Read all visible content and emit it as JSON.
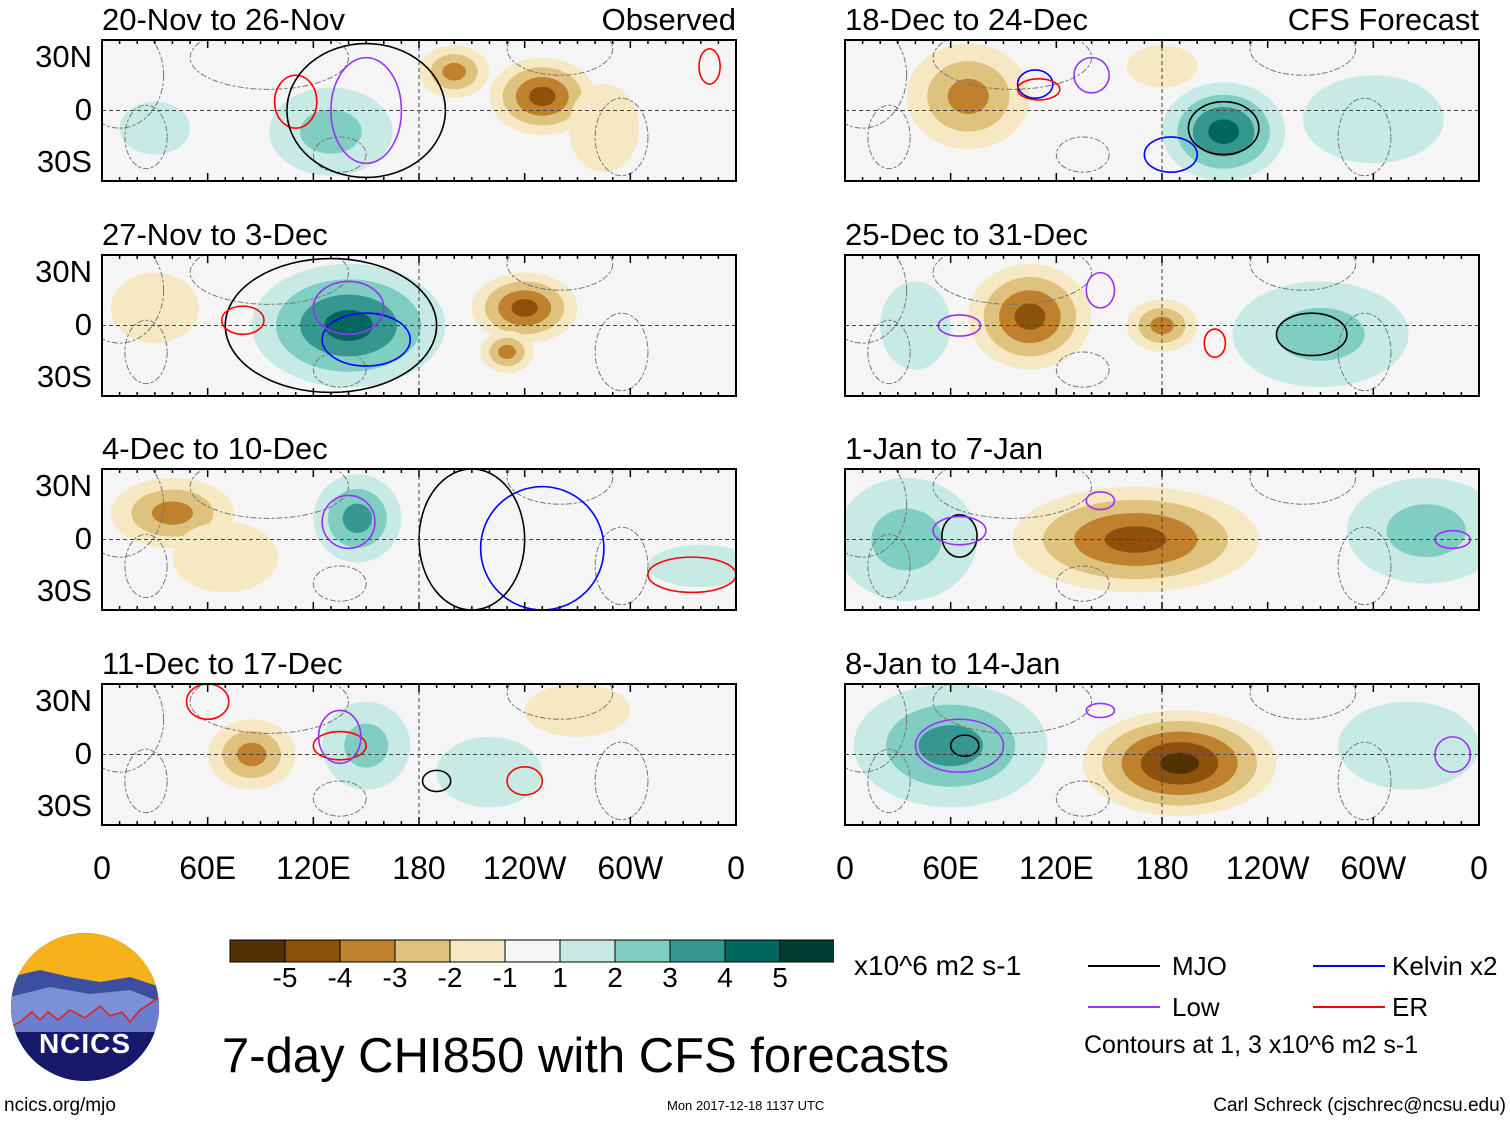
{
  "chart_data": {
    "type": "heatmap",
    "title": "7-day CHI850 with CFS forecasts",
    "units": "x10^6 m2 s-1",
    "x_ticks": [
      "0",
      "60E",
      "120E",
      "180",
      "120W",
      "60W",
      "0"
    ],
    "y_ticks": [
      "30N",
      "0",
      "30S"
    ],
    "colorbar": {
      "ticks": [
        "-5",
        "-4",
        "-3",
        "-2",
        "-1",
        "1",
        "2",
        "3",
        "4",
        "5"
      ],
      "colors": [
        "#543005",
        "#8c510a",
        "#bf812d",
        "#dfc27d",
        "#f6e8c3",
        "#f5f5f5",
        "#c7eae5",
        "#80cdc1",
        "#35978f",
        "#01665e",
        "#003c30"
      ]
    },
    "contour_colors": {
      "MJO": "#000000",
      "Low": "#9b30ff",
      "Kelvin": "#0000ff",
      "ER": "#ff0000"
    },
    "panels": [
      {
        "title": "20-Nov to 26-Nov",
        "tag": "Observed",
        "col": 0,
        "row": 0,
        "fields": [
          {
            "lon": 130,
            "lat": -12,
            "rx": 35,
            "ry": 25,
            "v": 2
          },
          {
            "lon": 30,
            "lat": -10,
            "rx": 20,
            "ry": 15,
            "v": 1
          },
          {
            "lon": 200,
            "lat": 22,
            "rx": 20,
            "ry": 15,
            "v": -3
          },
          {
            "lon": 250,
            "lat": 8,
            "rx": 30,
            "ry": 22,
            "v": -4
          },
          {
            "lon": 285,
            "lat": -10,
            "rx": 20,
            "ry": 25,
            "v": -1
          }
        ],
        "contours": [
          {
            "type": "ER",
            "lon": 110,
            "lat": 5,
            "rx": 12,
            "ry": 15
          },
          {
            "type": "Low",
            "lon": 150,
            "lat": 0,
            "rx": 20,
            "ry": 30
          },
          {
            "type": "ER",
            "lon": 345,
            "lat": 25,
            "rx": 6,
            "ry": 10
          },
          {
            "type": "MJO",
            "lon": 150,
            "lat": 0,
            "rx": 45,
            "ry": 38
          }
        ]
      },
      {
        "title": "27-Nov to 3-Dec",
        "tag": "",
        "col": 0,
        "row": 1,
        "fields": [
          {
            "lon": 140,
            "lat": 0,
            "rx": 55,
            "ry": 35,
            "v": 4
          },
          {
            "lon": 30,
            "lat": 10,
            "rx": 25,
            "ry": 20,
            "v": -1
          },
          {
            "lon": 240,
            "lat": 10,
            "rx": 30,
            "ry": 20,
            "v": -4
          },
          {
            "lon": 230,
            "lat": -15,
            "rx": 15,
            "ry": 12,
            "v": -3
          }
        ],
        "contours": [
          {
            "type": "MJO",
            "lon": 130,
            "lat": 0,
            "rx": 60,
            "ry": 38
          },
          {
            "type": "Kelvin",
            "lon": 150,
            "lat": -8,
            "rx": 25,
            "ry": 15
          },
          {
            "type": "ER",
            "lon": 80,
            "lat": 3,
            "rx": 12,
            "ry": 8
          },
          {
            "type": "Low",
            "lon": 140,
            "lat": 10,
            "rx": 20,
            "ry": 15
          }
        ]
      },
      {
        "title": "4-Dec to 10-Dec",
        "tag": "",
        "col": 0,
        "row": 2,
        "fields": [
          {
            "lon": 40,
            "lat": 15,
            "rx": 35,
            "ry": 20,
            "v": -3
          },
          {
            "lon": 70,
            "lat": -10,
            "rx": 30,
            "ry": 20,
            "v": -1
          },
          {
            "lon": 145,
            "lat": 12,
            "rx": 25,
            "ry": 25,
            "v": 3
          },
          {
            "lon": 340,
            "lat": -15,
            "rx": 30,
            "ry": 12,
            "v": 1
          }
        ],
        "contours": [
          {
            "type": "Low",
            "lon": 140,
            "lat": 10,
            "rx": 15,
            "ry": 15
          },
          {
            "type": "Kelvin",
            "lon": 250,
            "lat": -5,
            "rx": 35,
            "ry": 35
          },
          {
            "type": "ER",
            "lon": 335,
            "lat": -20,
            "rx": 25,
            "ry": 10
          },
          {
            "type": "MJO",
            "lon": 210,
            "lat": 0,
            "rx": 30,
            "ry": 40
          }
        ]
      },
      {
        "title": "11-Dec to 17-Dec",
        "tag": "",
        "col": 0,
        "row": 3,
        "fields": [
          {
            "lon": 85,
            "lat": 0,
            "rx": 25,
            "ry": 20,
            "v": -3
          },
          {
            "lon": 150,
            "lat": 5,
            "rx": 25,
            "ry": 25,
            "v": 2
          },
          {
            "lon": 270,
            "lat": 25,
            "rx": 30,
            "ry": 15,
            "v": -1
          },
          {
            "lon": 220,
            "lat": -10,
            "rx": 30,
            "ry": 20,
            "v": 1
          }
        ],
        "contours": [
          {
            "type": "ER",
            "lon": 60,
            "lat": 30,
            "rx": 12,
            "ry": 10
          },
          {
            "type": "ER",
            "lon": 135,
            "lat": 5,
            "rx": 15,
            "ry": 8
          },
          {
            "type": "Low",
            "lon": 135,
            "lat": 10,
            "rx": 12,
            "ry": 15
          },
          {
            "type": "ER",
            "lon": 240,
            "lat": -15,
            "rx": 10,
            "ry": 8
          },
          {
            "type": "MJO",
            "lon": 190,
            "lat": -15,
            "rx": 8,
            "ry": 6
          }
        ]
      },
      {
        "title": "18-Dec to 24-Dec",
        "tag": "CFS Forecast",
        "col": 1,
        "row": 0,
        "fields": [
          {
            "lon": 70,
            "lat": 8,
            "rx": 35,
            "ry": 30,
            "v": -3
          },
          {
            "lon": 180,
            "lat": 25,
            "rx": 20,
            "ry": 12,
            "v": -1
          },
          {
            "lon": 215,
            "lat": -12,
            "rx": 35,
            "ry": 28,
            "v": 4
          },
          {
            "lon": 300,
            "lat": -5,
            "rx": 40,
            "ry": 25,
            "v": 1
          }
        ],
        "contours": [
          {
            "type": "MJO",
            "lon": 215,
            "lat": -10,
            "rx": 20,
            "ry": 15
          },
          {
            "type": "Kelvin",
            "lon": 108,
            "lat": 15,
            "rx": 10,
            "ry": 8
          },
          {
            "type": "Low",
            "lon": 140,
            "lat": 20,
            "rx": 10,
            "ry": 10
          },
          {
            "type": "ER",
            "lon": 110,
            "lat": 12,
            "rx": 12,
            "ry": 6
          },
          {
            "type": "Kelvin",
            "lon": 185,
            "lat": -25,
            "rx": 15,
            "ry": 10
          }
        ]
      },
      {
        "title": "25-Dec to 31-Dec",
        "tag": "",
        "col": 1,
        "row": 1,
        "fields": [
          {
            "lon": 105,
            "lat": 5,
            "rx": 35,
            "ry": 30,
            "v": -4
          },
          {
            "lon": 180,
            "lat": 0,
            "rx": 20,
            "ry": 15,
            "v": -3
          },
          {
            "lon": 270,
            "lat": -5,
            "rx": 50,
            "ry": 30,
            "v": 2
          },
          {
            "lon": 40,
            "lat": 0,
            "rx": 20,
            "ry": 25,
            "v": 1
          }
        ],
        "contours": [
          {
            "type": "MJO",
            "lon": 265,
            "lat": -5,
            "rx": 20,
            "ry": 12
          },
          {
            "type": "Low",
            "lon": 65,
            "lat": 0,
            "rx": 12,
            "ry": 6
          },
          {
            "type": "Low",
            "lon": 145,
            "lat": 20,
            "rx": 8,
            "ry": 10
          },
          {
            "type": "ER",
            "lon": 210,
            "lat": -10,
            "rx": 6,
            "ry": 8
          }
        ]
      },
      {
        "title": "1-Jan to 7-Jan",
        "tag": "",
        "col": 1,
        "row": 2,
        "fields": [
          {
            "lon": 35,
            "lat": 0,
            "rx": 40,
            "ry": 35,
            "v": 2
          },
          {
            "lon": 165,
            "lat": 0,
            "rx": 70,
            "ry": 30,
            "v": -4
          },
          {
            "lon": 330,
            "lat": 5,
            "rx": 45,
            "ry": 30,
            "v": 2
          }
        ],
        "contours": [
          {
            "type": "MJO",
            "lon": 65,
            "lat": 2,
            "rx": 10,
            "ry": 12
          },
          {
            "type": "Low",
            "lon": 65,
            "lat": 5,
            "rx": 15,
            "ry": 8
          },
          {
            "type": "Low",
            "lon": 145,
            "lat": 22,
            "rx": 8,
            "ry": 5
          },
          {
            "type": "Low",
            "lon": 345,
            "lat": 0,
            "rx": 10,
            "ry": 5
          }
        ]
      },
      {
        "title": "8-Jan to 14-Jan",
        "tag": "",
        "col": 1,
        "row": 3,
        "fields": [
          {
            "lon": 60,
            "lat": 5,
            "rx": 55,
            "ry": 35,
            "v": 3
          },
          {
            "lon": 190,
            "lat": -5,
            "rx": 55,
            "ry": 30,
            "v": -5
          },
          {
            "lon": 320,
            "lat": 5,
            "rx": 40,
            "ry": 25,
            "v": 1
          }
        ],
        "contours": [
          {
            "type": "MJO",
            "lon": 68,
            "lat": 5,
            "rx": 8,
            "ry": 6
          },
          {
            "type": "Low",
            "lon": 65,
            "lat": 5,
            "rx": 25,
            "ry": 15
          },
          {
            "type": "Low",
            "lon": 145,
            "lat": 25,
            "rx": 8,
            "ry": 4
          },
          {
            "type": "Low",
            "lon": 345,
            "lat": 0,
            "rx": 10,
            "ry": 10
          }
        ]
      }
    ]
  },
  "legend": {
    "units": "x10^6 m2 s-1",
    "mjo": "MJO",
    "low": "Low",
    "kelvin": "Kelvin x2",
    "er": "ER",
    "note": "Contours at 1, 3 x10^6 m2 s-1"
  },
  "logo": {
    "text": "NCICS"
  },
  "footer": {
    "url": "ncics.org/mjo",
    "timestamp": "Mon 2017-12-18 1137 UTC",
    "author": "Carl Schreck (cjschrec@ncsu.edu)"
  }
}
